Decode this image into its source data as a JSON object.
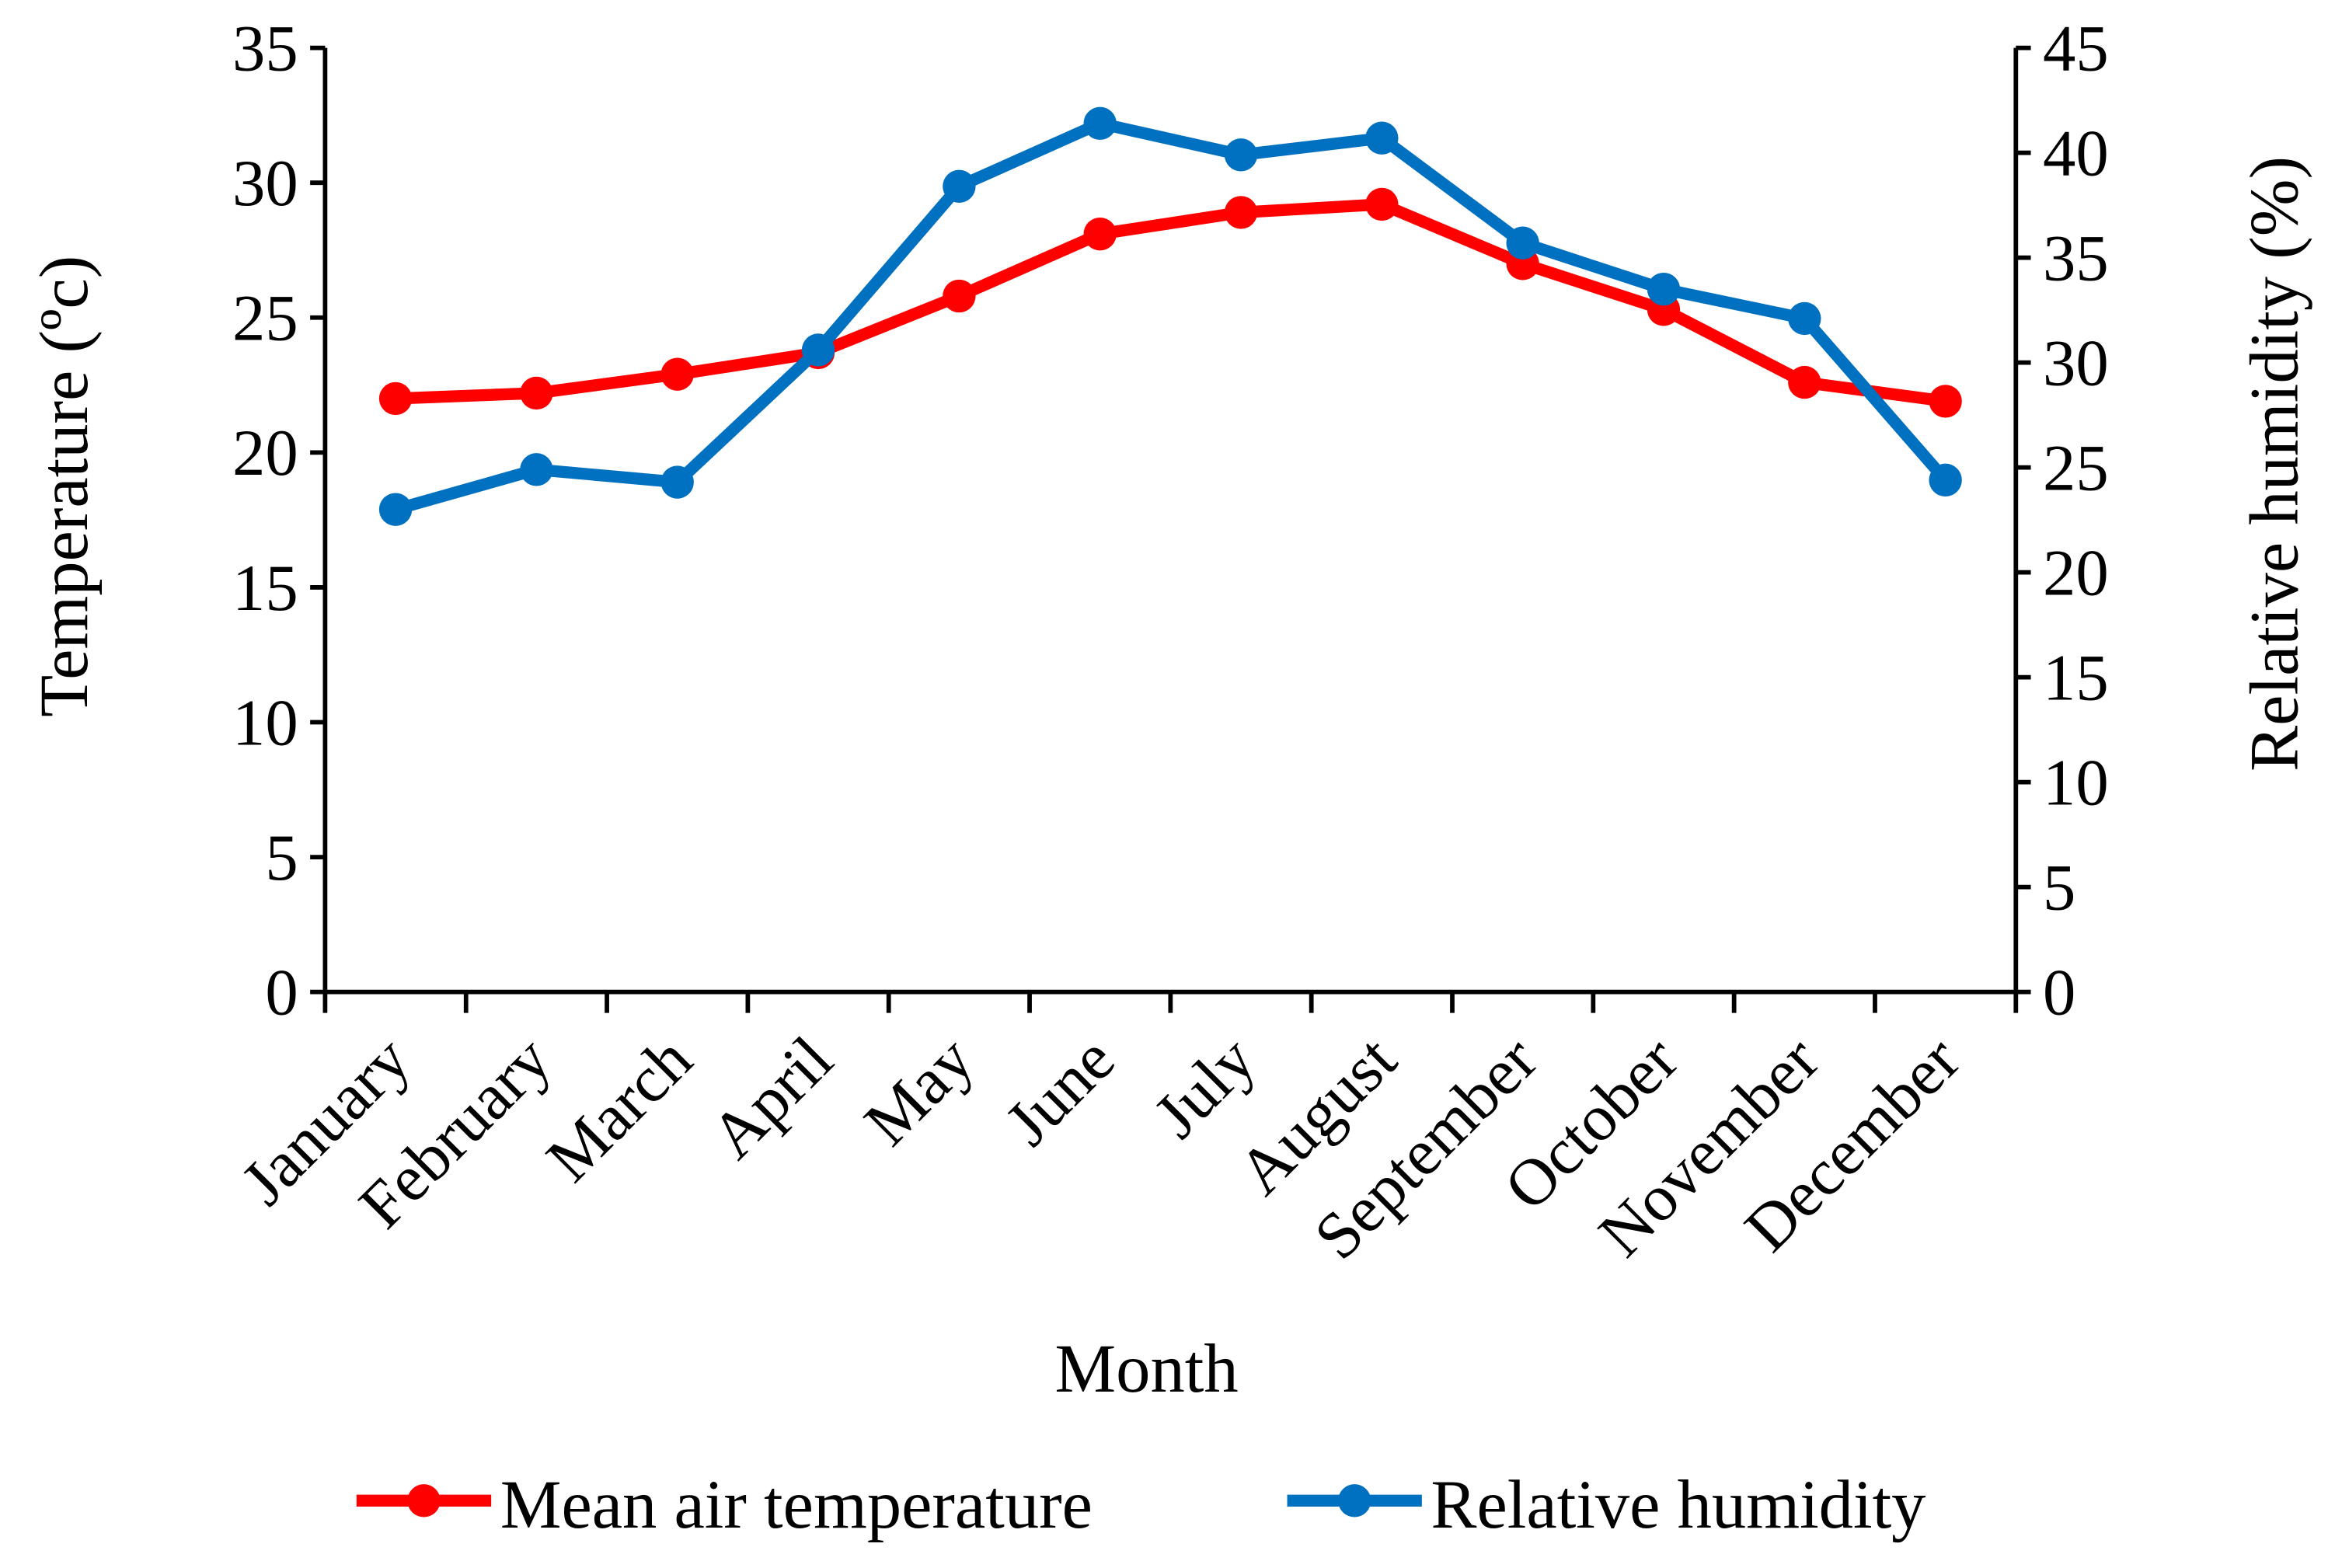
{
  "chart_data": {
    "type": "line",
    "title": "",
    "xlabel": "Month",
    "ylabel": "Temperature (ºc)",
    "y2label": "Relative humidity (%)",
    "categories": [
      "January",
      "February",
      "March",
      "April",
      "May",
      "June",
      "July",
      "August",
      "September",
      "October",
      "November",
      "December"
    ],
    "ylim": [
      0,
      35
    ],
    "y2lim": [
      0,
      45
    ],
    "yticks": [
      "0",
      "5",
      "10",
      "15",
      "20",
      "25",
      "30",
      "35"
    ],
    "y2ticks": [
      "0",
      "5",
      "10",
      "15",
      "20",
      "25",
      "30",
      "35",
      "40",
      "45"
    ],
    "grid": false,
    "legend_position": "bottom",
    "series": [
      {
        "name": "Mean air temperature",
        "axis": "left",
        "color": "#FF0000",
        "values": [
          22.0,
          22.2,
          22.9,
          23.7,
          25.8,
          28.1,
          28.9,
          29.2,
          27.0,
          25.3,
          22.6,
          21.9
        ]
      },
      {
        "name": "Relative humidity",
        "axis": "right",
        "color": "#0070C0",
        "values": [
          23.0,
          24.9,
          24.3,
          30.6,
          38.4,
          41.4,
          39.9,
          40.7,
          35.7,
          33.5,
          32.1,
          24.4
        ]
      }
    ]
  }
}
